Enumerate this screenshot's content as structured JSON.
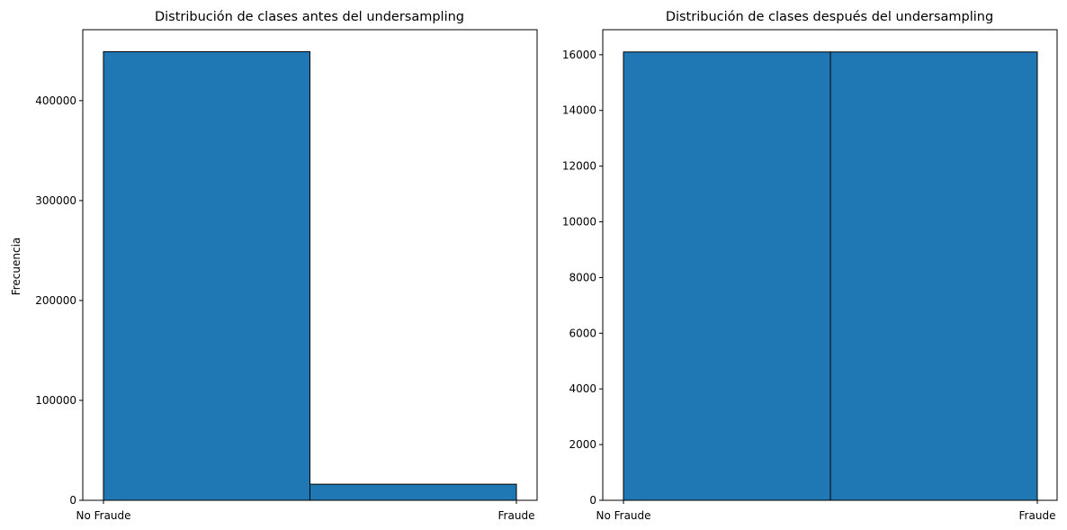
{
  "chart_data": [
    {
      "type": "bar",
      "title": "Distribución de clases antes del undersampling",
      "xlabel": "",
      "ylabel": "Frecuencia",
      "categories": [
        "No Fraude",
        "Fraude"
      ],
      "values": [
        449000,
        16100
      ],
      "ylim": [
        0,
        471000
      ],
      "yticks": [
        0,
        100000,
        200000,
        300000,
        400000
      ],
      "ytick_labels": [
        "0",
        "100000",
        "200000",
        "300000",
        "400000"
      ],
      "grid": false,
      "bar_color": "#1f77b4",
      "edge_color": "#000000"
    },
    {
      "type": "bar",
      "title": "Distribución de clases después del undersampling",
      "xlabel": "",
      "ylabel": "",
      "categories": [
        "No Fraude",
        "Fraude"
      ],
      "values": [
        16100,
        16100
      ],
      "ylim": [
        0,
        16900
      ],
      "yticks": [
        0,
        2000,
        4000,
        6000,
        8000,
        10000,
        12000,
        14000,
        16000
      ],
      "ytick_labels": [
        "0",
        "2000",
        "4000",
        "6000",
        "8000",
        "10000",
        "12000",
        "14000",
        "16000"
      ],
      "grid": false,
      "bar_color": "#1f77b4",
      "edge_color": "#000000"
    }
  ]
}
